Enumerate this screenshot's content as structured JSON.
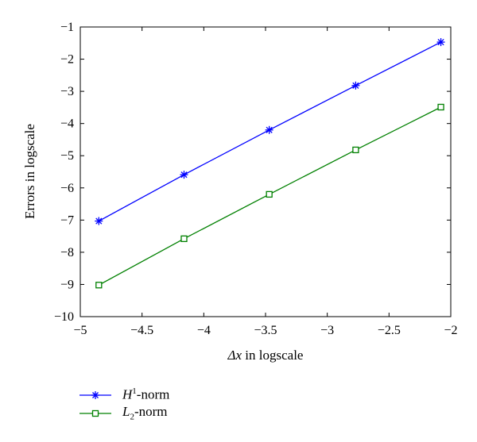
{
  "chart_data": {
    "type": "line",
    "title": "",
    "xlabel": {
      "symbol": "Δx",
      "text": " in logscale"
    },
    "ylabel": "Errors in logscale",
    "xlim": [
      -5,
      -2
    ],
    "ylim": [
      -10,
      -1
    ],
    "xticks": [
      "−5",
      "−4.5",
      "−4",
      "−3.5",
      "−3",
      "−2.5",
      "−2"
    ],
    "yticks": [
      "−1",
      "−2",
      "−3",
      "−4",
      "−5",
      "−6",
      "−7",
      "−8",
      "−9",
      "−10"
    ],
    "xtick_values": [
      -5,
      -4.5,
      -4,
      -3.5,
      -3,
      -2.5,
      -2
    ],
    "ytick_values": [
      -1,
      -2,
      -3,
      -4,
      -5,
      -6,
      -7,
      -8,
      -9,
      -10
    ],
    "grid": false,
    "legend_position": "bottom-left, below plot",
    "series": [
      {
        "name": "H1-norm",
        "label_base": "H",
        "label_sup": "1",
        "label_rest": "-norm",
        "color": "#0000ff",
        "marker": "asterisk",
        "x": [
          -4.85,
          -4.16,
          -3.47,
          -2.77,
          -2.08
        ],
        "y": [
          -7.03,
          -5.59,
          -4.2,
          -2.82,
          -1.47
        ]
      },
      {
        "name": "L2-norm",
        "label_base": "L",
        "label_sub": "2",
        "label_rest": "-norm",
        "color": "#008000",
        "marker": "square",
        "x": [
          -4.85,
          -4.16,
          -3.47,
          -2.77,
          -2.08
        ],
        "y": [
          -9.02,
          -7.58,
          -6.2,
          -4.82,
          -3.49
        ]
      }
    ]
  }
}
